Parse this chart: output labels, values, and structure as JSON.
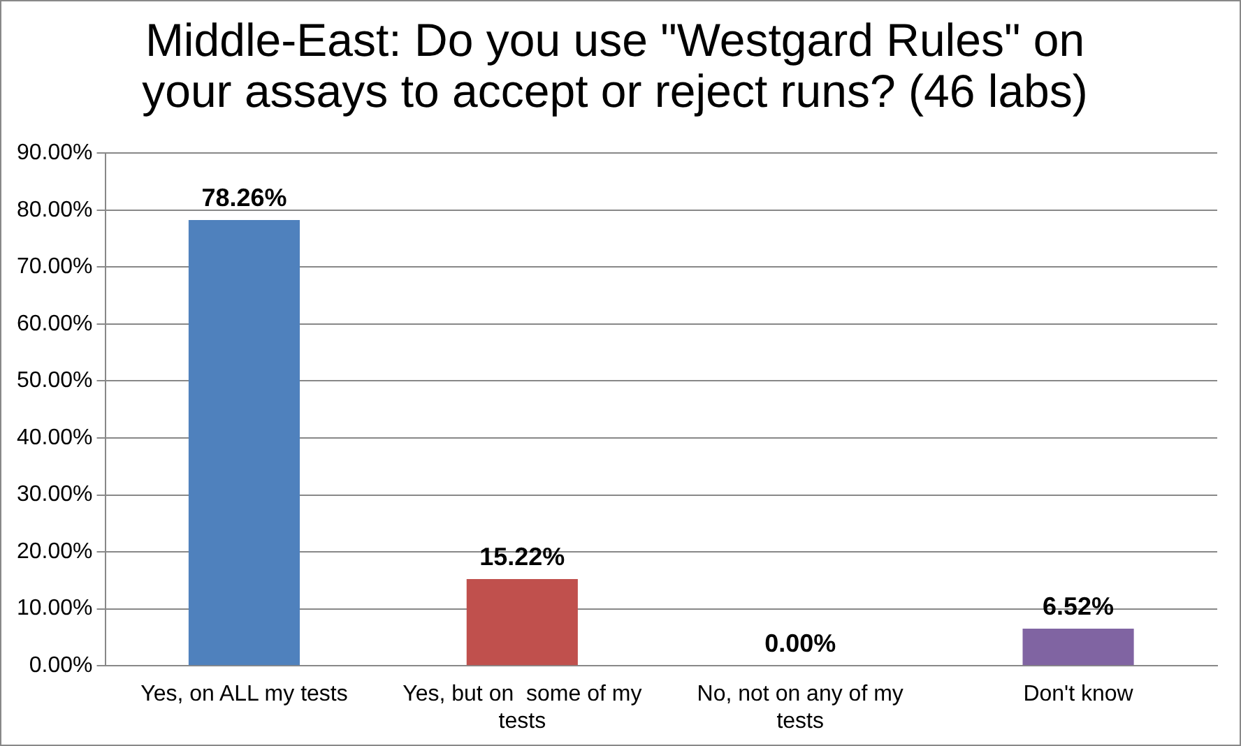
{
  "chart_data": {
    "type": "bar",
    "title": "Middle-East: Do you use \"Westgard Rules\" on your assays to accept or reject runs? (46 labs)",
    "categories": [
      "Yes, on ALL my tests",
      "Yes, but on  some of my tests",
      "No, not on any of my tests",
      "Don't know"
    ],
    "values": [
      78.26,
      15.22,
      0,
      6.52
    ],
    "colors": [
      "#4f81bd",
      "#c0504d",
      "#9bbb59",
      "#8064a2"
    ],
    "value_labels": [
      "78.26%",
      "15.22%",
      "0.00%",
      "6.52%"
    ],
    "ylim": [
      0,
      90
    ],
    "yticks": [
      {
        "value": 0,
        "label": "0.00%"
      },
      {
        "value": 10,
        "label": "10.00%"
      },
      {
        "value": 20,
        "label": "20.00%"
      },
      {
        "value": 30,
        "label": "30.00%"
      },
      {
        "value": 40,
        "label": "40.00%"
      },
      {
        "value": 50,
        "label": "50.00%"
      },
      {
        "value": 60,
        "label": "60.00%"
      },
      {
        "value": 70,
        "label": "70.00%"
      },
      {
        "value": 80,
        "label": "80.00%"
      },
      {
        "value": 90,
        "label": "90.00%"
      }
    ],
    "grid": "y",
    "legend": false
  }
}
